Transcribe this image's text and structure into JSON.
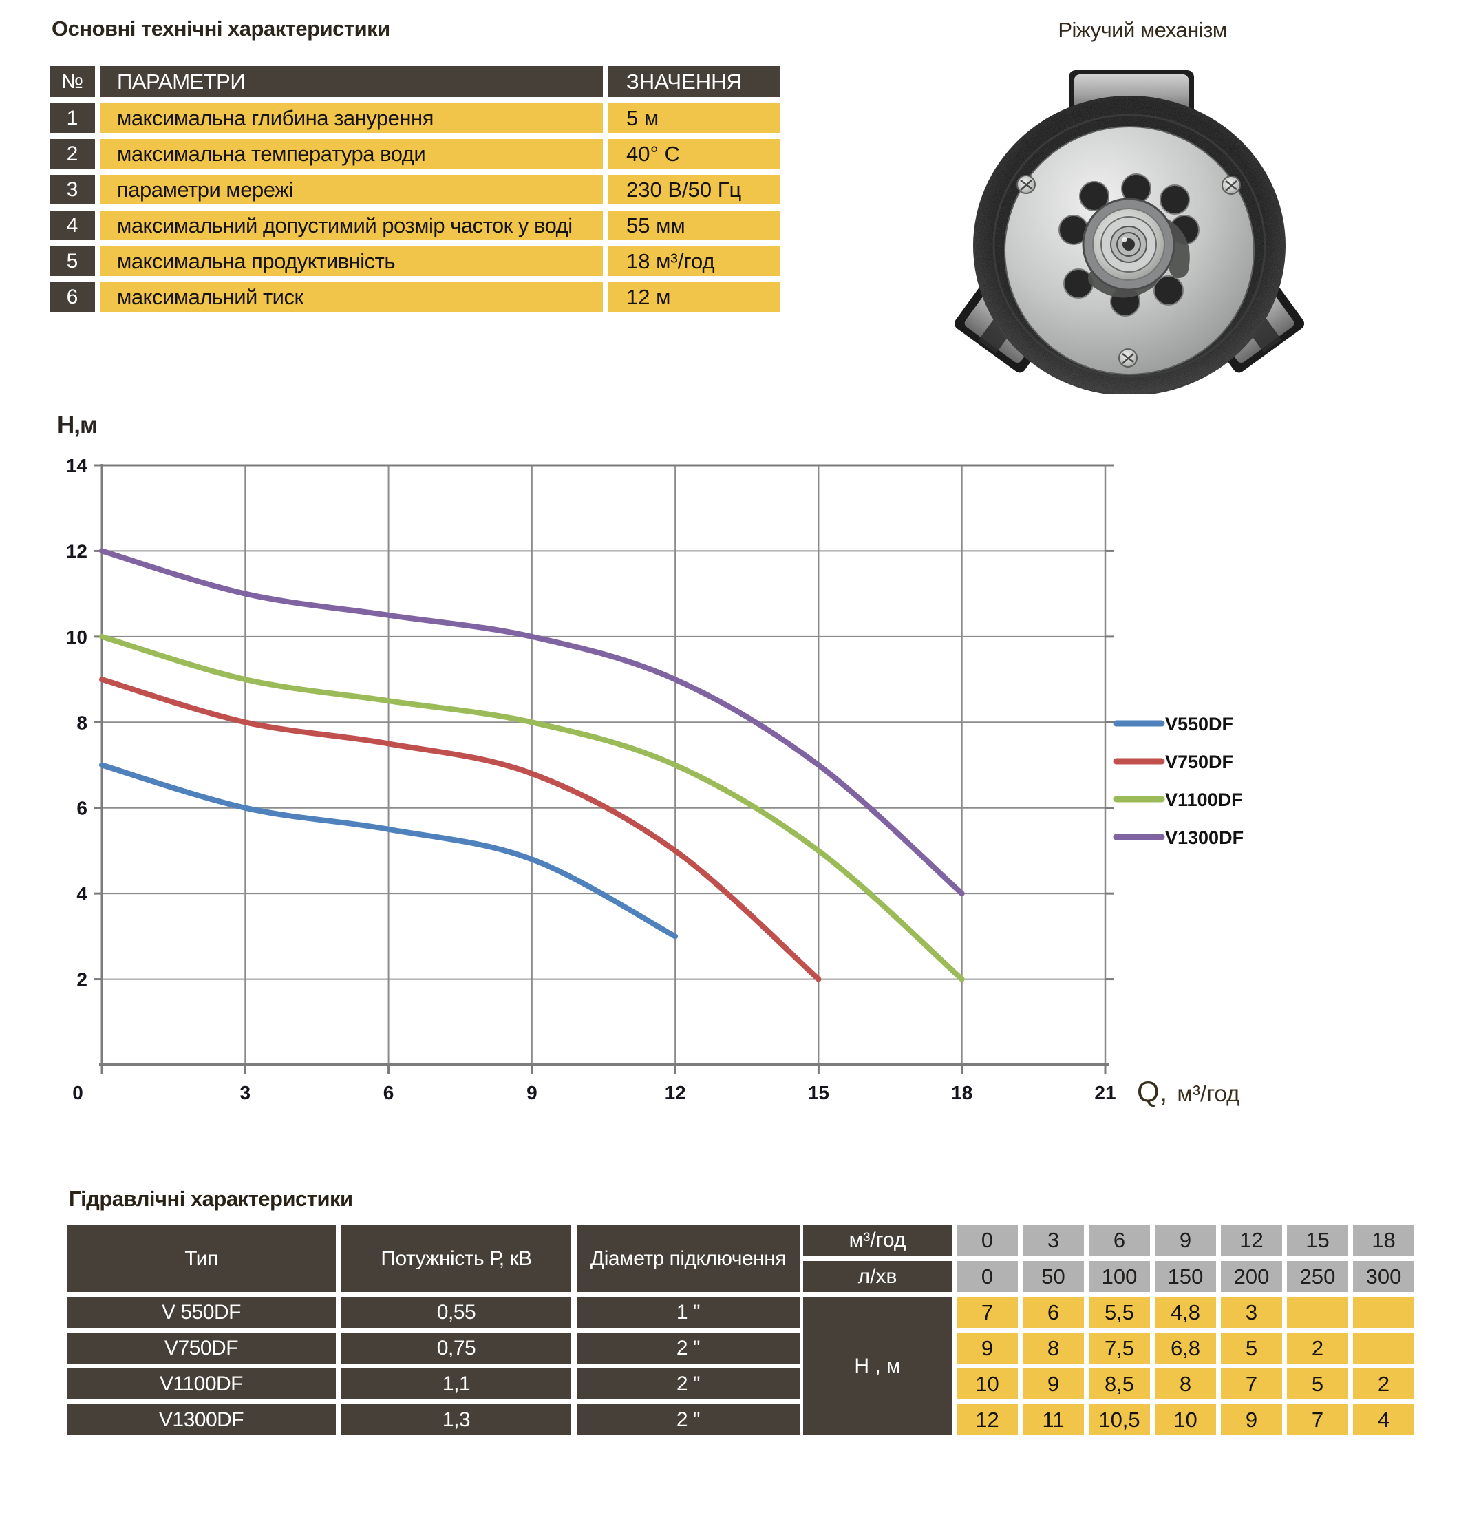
{
  "spec_table": {
    "title": "Основні технічні характеристики",
    "headers": {
      "num": "№",
      "param": "ПАРАМЕТРИ",
      "value": "ЗНАЧЕННЯ"
    },
    "rows": [
      {
        "num": "1",
        "param": "максимальна глибина занурення",
        "value": "5 м"
      },
      {
        "num": "2",
        "param": "максимальна температура води",
        "value": "40° С"
      },
      {
        "num": "3",
        "param": "параметри мережі",
        "value": "230 В/50 Гц"
      },
      {
        "num": "4",
        "param": "максимальний допустимий розмір часток у воді",
        "value": "55 мм"
      },
      {
        "num": "5",
        "param": "максимальна продуктивність",
        "value": "18 м³/год"
      },
      {
        "num": "6",
        "param": "максимальний тиск",
        "value": "12 м"
      }
    ]
  },
  "photo": {
    "title": "Ріжучий механізм"
  },
  "chart_data": {
    "type": "line",
    "title": "",
    "xlabel": "Q, м³/год",
    "ylabel": "Н,м",
    "xlim": [
      0,
      21
    ],
    "ylim": [
      0,
      14
    ],
    "xticks": [
      0,
      3,
      6,
      9,
      12,
      15,
      18,
      21
    ],
    "yticks": [
      2,
      4,
      6,
      8,
      10,
      12,
      14
    ],
    "grid": true,
    "legend_position": "right-middle",
    "series": [
      {
        "name": "V550DF",
        "color": "#4F81BD",
        "points": [
          [
            0,
            7
          ],
          [
            3,
            6
          ],
          [
            6,
            5.5
          ],
          [
            9,
            4.8
          ],
          [
            12,
            3
          ]
        ]
      },
      {
        "name": "V750DF",
        "color": "#C0504D",
        "points": [
          [
            0,
            9
          ],
          [
            3,
            8
          ],
          [
            6,
            7.5
          ],
          [
            9,
            6.8
          ],
          [
            12,
            5
          ],
          [
            15,
            2
          ]
        ]
      },
      {
        "name": "V1100DF",
        "color": "#9BBB59",
        "points": [
          [
            0,
            10
          ],
          [
            3,
            9
          ],
          [
            6,
            8.5
          ],
          [
            9,
            8
          ],
          [
            12,
            7
          ],
          [
            15,
            5
          ],
          [
            18,
            2
          ]
        ]
      },
      {
        "name": "V1300DF",
        "color": "#8064A2",
        "points": [
          [
            0,
            12
          ],
          [
            3,
            11
          ],
          [
            6,
            10.5
          ],
          [
            9,
            10
          ],
          [
            12,
            9
          ],
          [
            15,
            7
          ],
          [
            18,
            4
          ]
        ]
      }
    ]
  },
  "hydraulic_table": {
    "title": "Гідравлічні характеристики",
    "col_headers": {
      "type": "Тип",
      "power": "Потужність  Р, кВ",
      "diameter": "Діаметр підключення"
    },
    "pumps": [
      {
        "type": "V 550DF",
        "power": "0,55",
        "diameter": "1 \""
      },
      {
        "type": "V750DF",
        "power": "0,75",
        "diameter": "2 \""
      },
      {
        "type": "V1100DF",
        "power": "1,1",
        "diameter": "2 \""
      },
      {
        "type": "V1300DF",
        "power": "1,3",
        "diameter": "2 \""
      }
    ],
    "flow_header": {
      "m3": "м³/год",
      "lmin": "л/хв"
    },
    "flow_m3": [
      "0",
      "3",
      "6",
      "9",
      "12",
      "15",
      "18"
    ],
    "flow_lmin": [
      "0",
      "50",
      "100",
      "150",
      "200",
      "250",
      "300"
    ],
    "head_label": "Н , м",
    "head_rows": [
      [
        "7",
        "6",
        "5,5",
        "4,8",
        "3",
        "",
        ""
      ],
      [
        "9",
        "8",
        "7,5",
        "6,8",
        "5",
        "2",
        ""
      ],
      [
        "10",
        "9",
        "8,5",
        "8",
        "7",
        "5",
        "2"
      ],
      [
        "12",
        "11",
        "10,5",
        "10",
        "9",
        "7",
        "4"
      ]
    ],
    "colors": {
      "yellow": "#F0C54A",
      "dark": "#474038",
      "gray": "#B2B2B2"
    }
  }
}
